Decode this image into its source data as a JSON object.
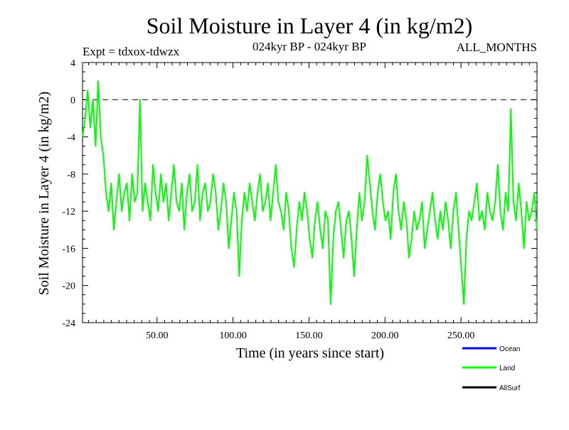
{
  "header": {
    "title": "Soil Moisture in Layer 4 (in kg/m2)",
    "expt": "Expt = tdxox-tdwzx",
    "period": "024kyr BP - 024kyr BP",
    "months": "ALL_MONTHS"
  },
  "chart_data": {
    "type": "line",
    "title": "Soil Moisture in Layer 4 (in kg/m2)",
    "xlabel": "Time (in years since start)",
    "ylabel": "Soil Moisture in Layer 4 (in kg/m2)",
    "xlim": [
      1,
      300
    ],
    "ylim": [
      -24,
      4
    ],
    "x_ticks": [
      50,
      100,
      150,
      200,
      250
    ],
    "x_tick_labels": [
      "50.00",
      "100.00",
      "150.00",
      "200.00",
      "250.00"
    ],
    "y_ticks": [
      4,
      0,
      -4,
      -8,
      -12,
      -16,
      -20,
      -24
    ],
    "y_tick_labels": [
      "4",
      "0",
      "-4",
      "-8",
      "-12",
      "-16",
      "-20",
      "-24"
    ],
    "reference_line": {
      "y": 0,
      "style": "dashed"
    },
    "legend_position": "bottom-right, below plot",
    "series": [
      {
        "name": "Ocean",
        "color": "#0000ff",
        "values": []
      },
      {
        "name": "Land",
        "color": "#00ff00",
        "sampling": "monthly",
        "x_range": [
          1,
          300
        ],
        "values": [
          -4,
          -2,
          1,
          -3,
          0,
          -5,
          2,
          -4,
          -6,
          -10,
          -12,
          -9,
          -14,
          -11,
          -8,
          -12,
          -10,
          -9,
          -13,
          -8,
          -11,
          -10,
          0,
          -12,
          -9,
          -11,
          -13,
          -7,
          -10,
          -12,
          -8,
          -11,
          -9,
          -13,
          -10,
          -7,
          -11,
          -12,
          -9,
          -14,
          -10,
          -8,
          -12,
          -11,
          -7,
          -13,
          -10,
          -9,
          -12,
          -11,
          -8,
          -10,
          -14,
          -12,
          -9,
          -11,
          -16,
          -13,
          -10,
          -12,
          -19,
          -13,
          -10,
          -12,
          -9,
          -11,
          -13,
          -10,
          -8,
          -12,
          -11,
          -9,
          -13,
          -10,
          -7,
          -11,
          -12,
          -14,
          -10,
          -12,
          -16,
          -18,
          -14,
          -11,
          -13,
          -10,
          -12,
          -15,
          -17,
          -13,
          -11,
          -14,
          -16,
          -12,
          -13,
          -22,
          -15,
          -12,
          -11,
          -14,
          -17,
          -13,
          -12,
          -15,
          -19,
          -14,
          -10,
          -13,
          -11,
          -6,
          -9,
          -12,
          -14,
          -10,
          -8,
          -11,
          -13,
          -12,
          -15,
          -10,
          -8,
          -12,
          -14,
          -11,
          -13,
          -17,
          -15,
          -12,
          -14,
          -13,
          -11,
          -16,
          -14,
          -12,
          -10,
          -13,
          -15,
          -12,
          -14,
          -11,
          -13,
          -16,
          -12,
          -10,
          -14,
          -18,
          -22,
          -15,
          -12,
          -13,
          -11,
          -9,
          -13,
          -12,
          -14,
          -10,
          -12,
          -13,
          -11,
          -7,
          -12,
          -14,
          -10,
          -12,
          -1,
          -11,
          -13,
          -9,
          -12,
          -16,
          -11,
          -13,
          -12,
          -10,
          -14
        ]
      },
      {
        "name": "AllSurf",
        "color": "#000000",
        "values": []
      }
    ]
  }
}
